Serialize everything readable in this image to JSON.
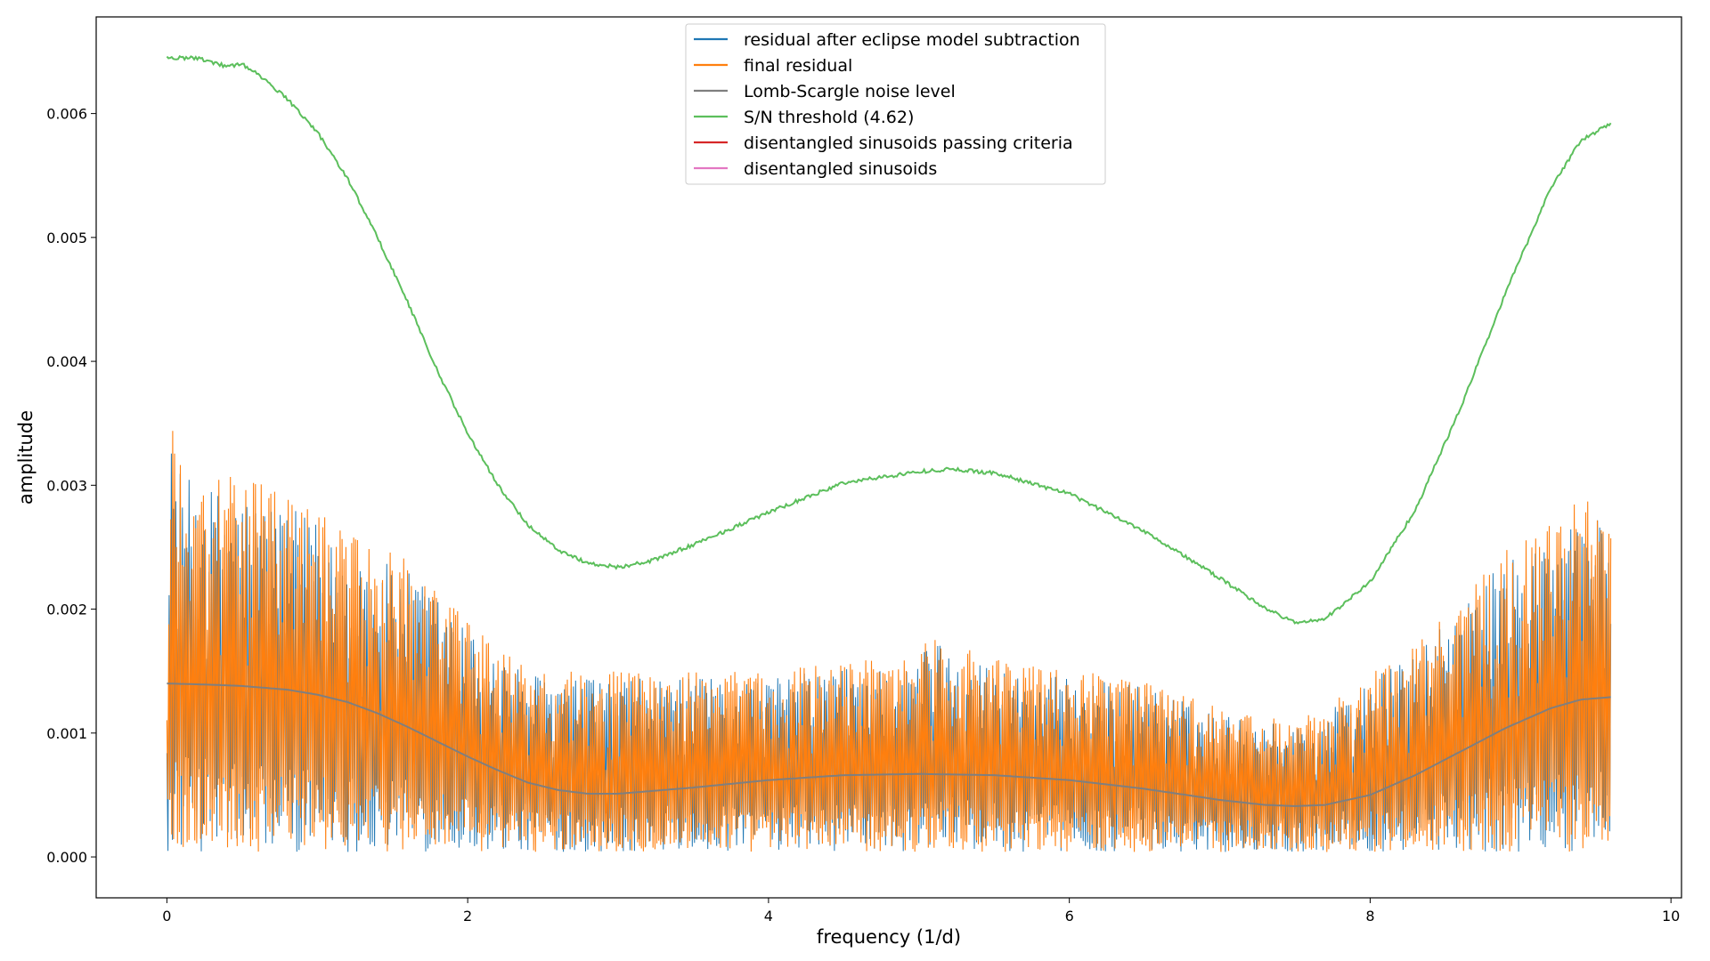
{
  "chart_data": {
    "type": "line",
    "title": "",
    "xlabel": "frequency (1/d)",
    "ylabel": "amplitude",
    "xlim": [
      -0.47,
      10.07
    ],
    "ylim": [
      -0.00033,
      0.00678
    ],
    "x_ticks": [
      0,
      2,
      4,
      6,
      8,
      10
    ],
    "x_tick_labels": [
      "0",
      "2",
      "4",
      "6",
      "8",
      "10"
    ],
    "y_ticks": [
      0.0,
      0.001,
      0.002,
      0.003,
      0.004,
      0.005,
      0.006
    ],
    "y_tick_labels": [
      "0.000",
      "0.001",
      "0.002",
      "0.003",
      "0.004",
      "0.005",
      "0.006"
    ],
    "grid": false,
    "legend_position": "upper-center",
    "freq_range": [
      0.0,
      9.6
    ],
    "legend": [
      {
        "label": "residual after eclipse model subtraction",
        "color": "#1f77b4"
      },
      {
        "label": "final residual",
        "color": "#ff7f0e"
      },
      {
        "label": "Lomb-Scargle noise level",
        "color": "#7f7f7f"
      },
      {
        "label": "S/N threshold (4.62)",
        "color": "#5cbf5c"
      },
      {
        "label": "disentangled sinusoids passing criteria",
        "color": "#d62728"
      },
      {
        "label": "disentangled sinusoids",
        "color": "#e377c2"
      }
    ],
    "series": [
      {
        "name": "S/N threshold (4.62)",
        "color": "#5cbf5c",
        "x": [
          0.0,
          0.2,
          0.4,
          0.5,
          0.6,
          0.8,
          1.0,
          1.2,
          1.4,
          1.6,
          1.8,
          2.0,
          2.2,
          2.4,
          2.6,
          2.8,
          3.0,
          3.2,
          3.5,
          4.0,
          4.5,
          5.0,
          5.2,
          5.5,
          6.0,
          6.5,
          7.0,
          7.3,
          7.5,
          7.7,
          8.0,
          8.3,
          8.6,
          8.9,
          9.2,
          9.4,
          9.6
        ],
        "y": [
          0.00645,
          0.00645,
          0.00638,
          0.0064,
          0.00632,
          0.00612,
          0.00585,
          0.00548,
          0.005,
          0.00448,
          0.00392,
          0.00342,
          0.003,
          0.00268,
          0.00248,
          0.00237,
          0.00234,
          0.00238,
          0.00252,
          0.00278,
          0.00302,
          0.00311,
          0.00313,
          0.0031,
          0.00293,
          0.00263,
          0.00225,
          0.00201,
          0.00189,
          0.00192,
          0.00222,
          0.0028,
          0.00362,
          0.00455,
          0.0054,
          0.00578,
          0.00592
        ]
      },
      {
        "name": "Lomb-Scargle noise level",
        "color": "#7f7f7f",
        "x": [
          0.0,
          0.3,
          0.5,
          0.8,
          1.0,
          1.2,
          1.4,
          1.6,
          1.8,
          2.0,
          2.2,
          2.4,
          2.6,
          2.8,
          3.0,
          3.5,
          4.0,
          4.5,
          5.0,
          5.5,
          6.0,
          6.5,
          7.0,
          7.3,
          7.5,
          7.7,
          8.0,
          8.3,
          8.6,
          8.9,
          9.2,
          9.4,
          9.6
        ],
        "y": [
          0.0014,
          0.00139,
          0.00138,
          0.00135,
          0.00131,
          0.00125,
          0.00116,
          0.00105,
          0.00093,
          0.00081,
          0.0007,
          0.0006,
          0.00054,
          0.00051,
          0.00051,
          0.00056,
          0.00062,
          0.00066,
          0.00067,
          0.00066,
          0.00062,
          0.00055,
          0.00046,
          0.00042,
          0.00041,
          0.00042,
          0.0005,
          0.00066,
          0.00085,
          0.00104,
          0.0012,
          0.00127,
          0.00129
        ]
      },
      {
        "name": "final residual",
        "color": "#ff7f0e",
        "x": [
          0.0,
          0.03,
          0.1,
          0.3,
          0.5,
          0.8,
          1.0,
          1.2,
          1.4,
          1.6,
          1.8,
          2.0,
          2.2,
          2.4,
          2.6,
          2.8,
          3.0,
          3.5,
          4.0,
          4.5,
          5.0,
          5.05,
          5.5,
          6.0,
          6.5,
          7.0,
          7.5,
          7.8,
          8.0,
          8.3,
          8.6,
          8.9,
          9.2,
          9.4,
          9.6
        ],
        "y": [
          0.0016,
          0.0035,
          0.0032,
          0.0031,
          0.00305,
          0.00295,
          0.0028,
          0.0026,
          0.0025,
          0.0024,
          0.0022,
          0.0019,
          0.0017,
          0.00155,
          0.0015,
          0.0015,
          0.0015,
          0.0015,
          0.0015,
          0.0016,
          0.0016,
          0.00187,
          0.0016,
          0.0015,
          0.00145,
          0.0012,
          0.0011,
          0.0013,
          0.0015,
          0.0017,
          0.0021,
          0.0025,
          0.0027,
          0.0029,
          0.0028
        ]
      },
      {
        "name": "residual after eclipse model subtraction",
        "color": "#1f77b4",
        "x": [
          0.02,
          0.1,
          5.05,
          9.6
        ],
        "y": [
          0.0018,
          0.003,
          0.0018,
          0.0024
        ]
      },
      {
        "name": "disentangled sinusoids passing criteria",
        "color": "#d62728",
        "x": [],
        "y": []
      },
      {
        "name": "disentangled sinusoids",
        "color": "#e377c2",
        "x": [],
        "y": []
      }
    ]
  }
}
